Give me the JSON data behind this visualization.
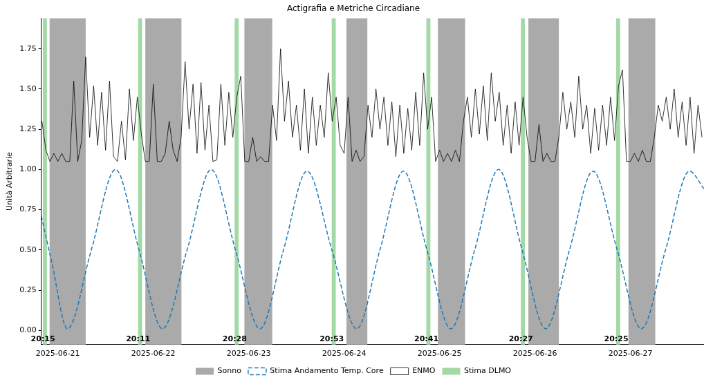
{
  "chart_data": {
    "type": "line",
    "title": "Actigrafia e Metriche Circadiane",
    "ylabel": "Unità Arbitrarie",
    "xlim": [
      "2025-06-20T19:50",
      "2025-06-27T18:30"
    ],
    "xticks": [
      "2025-06-21",
      "2025-06-22",
      "2025-06-23",
      "2025-06-24",
      "2025-06-25",
      "2025-06-26",
      "2025-06-27"
    ],
    "ylim": [
      -0.088,
      1.94
    ],
    "yticks": [
      {
        "value": 0,
        "label": "0.00"
      },
      {
        "value": 0.25,
        "label": "0.25"
      },
      {
        "value": 0.5,
        "label": "0.50"
      },
      {
        "value": 0.75,
        "label": "0.75"
      },
      {
        "value": 1,
        "label": "1.00"
      },
      {
        "value": 1.25,
        "label": "1.25"
      },
      {
        "value": 1.5,
        "label": "1.50"
      },
      {
        "value": 1.75,
        "label": "1.75"
      }
    ],
    "grid": false,
    "legend": "bottom",
    "marker": "none",
    "series": [
      {
        "name": "Stima Andamento Temp. Core",
        "color": "#1f77b4",
        "line_style": "dashed",
        "x": [
          "2025-06-20T19:50",
          "2025-06-20T22:30",
          "2025-06-21T02:25",
          "2025-06-21T08:25",
          "2025-06-21T14:30",
          "2025-06-21T20:25",
          "2025-06-22T02:20",
          "2025-06-22T08:30",
          "2025-06-22T14:35",
          "2025-06-22T20:40",
          "2025-06-23T02:50",
          "2025-06-23T08:45",
          "2025-06-23T14:40",
          "2025-06-23T20:55",
          "2025-06-24T03:10",
          "2025-06-24T09:00",
          "2025-06-24T14:55",
          "2025-06-24T20:50",
          "2025-06-25T02:50",
          "2025-06-25T08:50",
          "2025-06-25T14:50",
          "2025-06-25T20:45",
          "2025-06-26T02:40",
          "2025-06-26T08:40",
          "2025-06-26T14:35",
          "2025-06-26T20:40",
          "2025-06-27T02:45",
          "2025-06-27T08:50",
          "2025-06-27T14:50",
          "2025-06-27T18:30"
        ],
        "values": [
          0.71,
          0.42,
          0.01,
          0.5,
          1.0,
          0.5,
          0.01,
          0.5,
          1.0,
          0.5,
          0.01,
          0.5,
          0.99,
          0.5,
          0.01,
          0.5,
          0.99,
          0.5,
          0.01,
          0.5,
          1.0,
          0.5,
          0.01,
          0.5,
          0.99,
          0.5,
          0.01,
          0.5,
          0.99,
          0.88
        ]
      },
      {
        "name": "ENMO",
        "color": "#000000",
        "line_style": "solid",
        "x": [
          "2025-06-20T20:00",
          "2025-06-20T21:00",
          "2025-06-20T22:00",
          "2025-06-20T23:00",
          "2025-06-21T00:00",
          "2025-06-21T01:00",
          "2025-06-21T02:00",
          "2025-06-21T03:00",
          "2025-06-21T04:00",
          "2025-06-21T05:00",
          "2025-06-21T06:00",
          "2025-06-21T07:00",
          "2025-06-21T08:00",
          "2025-06-21T09:00",
          "2025-06-21T10:00",
          "2025-06-21T11:00",
          "2025-06-21T12:00",
          "2025-06-21T13:00",
          "2025-06-21T14:00",
          "2025-06-21T15:00",
          "2025-06-21T16:00",
          "2025-06-21T17:00",
          "2025-06-21T18:00",
          "2025-06-21T19:00",
          "2025-06-21T20:00",
          "2025-06-21T21:00",
          "2025-06-21T22:00",
          "2025-06-21T23:00",
          "2025-06-22T00:00",
          "2025-06-22T01:00",
          "2025-06-22T02:00",
          "2025-06-22T03:00",
          "2025-06-22T04:00",
          "2025-06-22T05:00",
          "2025-06-22T06:00",
          "2025-06-22T07:00",
          "2025-06-22T08:00",
          "2025-06-22T09:00",
          "2025-06-22T10:00",
          "2025-06-22T11:00",
          "2025-06-22T12:00",
          "2025-06-22T13:00",
          "2025-06-22T14:00",
          "2025-06-22T15:00",
          "2025-06-22T16:00",
          "2025-06-22T17:00",
          "2025-06-22T18:00",
          "2025-06-22T19:00",
          "2025-06-22T20:00",
          "2025-06-22T21:00",
          "2025-06-22T22:00",
          "2025-06-22T23:00",
          "2025-06-23T00:00",
          "2025-06-23T01:00",
          "2025-06-23T02:00",
          "2025-06-23T03:00",
          "2025-06-23T04:00",
          "2025-06-23T05:00",
          "2025-06-23T06:00",
          "2025-06-23T07:00",
          "2025-06-23T08:00",
          "2025-06-23T09:00",
          "2025-06-23T10:00",
          "2025-06-23T11:00",
          "2025-06-23T12:00",
          "2025-06-23T13:00",
          "2025-06-23T14:00",
          "2025-06-23T15:00",
          "2025-06-23T16:00",
          "2025-06-23T17:00",
          "2025-06-23T18:00",
          "2025-06-23T19:00",
          "2025-06-23T20:00",
          "2025-06-23T21:00",
          "2025-06-23T22:00",
          "2025-06-23T23:00",
          "2025-06-24T00:00",
          "2025-06-24T01:00",
          "2025-06-24T02:00",
          "2025-06-24T03:00",
          "2025-06-24T04:00",
          "2025-06-24T05:00",
          "2025-06-24T06:00",
          "2025-06-24T07:00",
          "2025-06-24T08:00",
          "2025-06-24T09:00",
          "2025-06-24T10:00",
          "2025-06-24T11:00",
          "2025-06-24T12:00",
          "2025-06-24T13:00",
          "2025-06-24T14:00",
          "2025-06-24T15:00",
          "2025-06-24T16:00",
          "2025-06-24T17:00",
          "2025-06-24T18:00",
          "2025-06-24T19:00",
          "2025-06-24T20:00",
          "2025-06-24T21:00",
          "2025-06-24T22:00",
          "2025-06-24T23:00",
          "2025-06-25T00:00",
          "2025-06-25T01:00",
          "2025-06-25T02:00",
          "2025-06-25T03:00",
          "2025-06-25T04:00",
          "2025-06-25T05:00",
          "2025-06-25T06:00",
          "2025-06-25T07:00",
          "2025-06-25T08:00",
          "2025-06-25T09:00",
          "2025-06-25T10:00",
          "2025-06-25T11:00",
          "2025-06-25T12:00",
          "2025-06-25T13:00",
          "2025-06-25T14:00",
          "2025-06-25T15:00",
          "2025-06-25T16:00",
          "2025-06-25T17:00",
          "2025-06-25T18:00",
          "2025-06-25T19:00",
          "2025-06-25T20:00",
          "2025-06-25T21:00",
          "2025-06-25T22:00",
          "2025-06-25T23:00",
          "2025-06-26T00:00",
          "2025-06-26T01:00",
          "2025-06-26T02:00",
          "2025-06-26T03:00",
          "2025-06-26T04:00",
          "2025-06-26T05:00",
          "2025-06-26T06:00",
          "2025-06-26T07:00",
          "2025-06-26T08:00",
          "2025-06-26T09:00",
          "2025-06-26T10:00",
          "2025-06-26T11:00",
          "2025-06-26T12:00",
          "2025-06-26T13:00",
          "2025-06-26T14:00",
          "2025-06-26T15:00",
          "2025-06-26T16:00",
          "2025-06-26T17:00",
          "2025-06-26T18:00",
          "2025-06-26T19:00",
          "2025-06-26T20:00",
          "2025-06-26T21:00",
          "2025-06-26T22:00",
          "2025-06-26T23:00",
          "2025-06-27T00:00",
          "2025-06-27T01:00",
          "2025-06-27T02:00",
          "2025-06-27T03:00",
          "2025-06-27T04:00",
          "2025-06-27T05:00",
          "2025-06-27T06:00",
          "2025-06-27T07:00",
          "2025-06-27T08:00",
          "2025-06-27T09:00",
          "2025-06-27T10:00",
          "2025-06-27T11:00",
          "2025-06-27T12:00",
          "2025-06-27T13:00",
          "2025-06-27T14:00",
          "2025-06-27T15:00",
          "2025-06-27T16:00",
          "2025-06-27T17:00",
          "2025-06-27T18:00"
        ],
        "values": [
          1.3,
          1.12,
          1.05,
          1.1,
          1.05,
          1.1,
          1.05,
          1.05,
          1.55,
          1.05,
          1.18,
          1.7,
          1.2,
          1.52,
          1.15,
          1.48,
          1.12,
          1.55,
          1.08,
          1.05,
          1.3,
          1.06,
          1.5,
          1.18,
          1.45,
          1.22,
          1.05,
          1.05,
          1.53,
          1.05,
          1.05,
          1.1,
          1.3,
          1.12,
          1.05,
          1.2,
          1.67,
          1.25,
          1.53,
          1.1,
          1.54,
          1.12,
          1.4,
          1.05,
          1.06,
          1.53,
          1.15,
          1.48,
          1.2,
          1.45,
          1.58,
          1.05,
          1.05,
          1.2,
          1.05,
          1.08,
          1.05,
          1.05,
          1.4,
          1.18,
          1.75,
          1.3,
          1.55,
          1.2,
          1.4,
          1.12,
          1.5,
          1.1,
          1.45,
          1.15,
          1.4,
          1.2,
          1.6,
          1.3,
          1.45,
          1.15,
          1.1,
          1.45,
          1.05,
          1.12,
          1.05,
          1.08,
          1.4,
          1.2,
          1.5,
          1.25,
          1.45,
          1.15,
          1.42,
          1.08,
          1.4,
          1.1,
          1.38,
          1.12,
          1.48,
          1.15,
          1.6,
          1.25,
          1.45,
          1.05,
          1.12,
          1.05,
          1.1,
          1.05,
          1.12,
          1.05,
          1.3,
          1.45,
          1.2,
          1.5,
          1.22,
          1.52,
          1.18,
          1.6,
          1.3,
          1.48,
          1.15,
          1.4,
          1.1,
          1.42,
          1.15,
          1.45,
          1.2,
          1.05,
          1.05,
          1.28,
          1.05,
          1.1,
          1.05,
          1.05,
          1.2,
          1.48,
          1.25,
          1.42,
          1.2,
          1.58,
          1.25,
          1.4,
          1.1,
          1.38,
          1.12,
          1.4,
          1.15,
          1.45,
          1.18,
          1.52,
          1.62,
          1.05,
          1.05,
          1.1,
          1.05,
          1.12,
          1.05,
          1.05,
          1.2,
          1.4,
          1.3,
          1.45,
          1.25,
          1.5,
          1.2,
          1.42,
          1.15,
          1.45,
          1.1,
          1.4,
          1.2
        ]
      }
    ],
    "bands": [
      {
        "axis": "x",
        "from": "2025-06-20T21:55",
        "to": "2025-06-21T07:00",
        "label": "Sonno",
        "color": "#aaaaaa"
      },
      {
        "axis": "x",
        "from": "2025-06-21T22:00",
        "to": "2025-06-22T07:05",
        "color": "#aaaaaa"
      },
      {
        "axis": "x",
        "from": "2025-06-22T22:55",
        "to": "2025-06-23T05:55",
        "color": "#aaaaaa"
      },
      {
        "axis": "x",
        "from": "2025-06-24T00:35",
        "to": "2025-06-24T05:50",
        "color": "#aaaaaa"
      },
      {
        "axis": "x",
        "from": "2025-06-24T23:35",
        "to": "2025-06-25T06:25",
        "color": "#aaaaaa"
      },
      {
        "axis": "x",
        "from": "2025-06-25T22:20",
        "to": "2025-06-26T06:00",
        "color": "#aaaaaa"
      },
      {
        "axis": "x",
        "from": "2025-06-26T23:30",
        "to": "2025-06-27T06:15",
        "color": "#aaaaaa"
      },
      {
        "axis": "x",
        "from": "2025-06-20T20:15",
        "to": "2025-06-20T21:15",
        "label": "Stima DLMO",
        "color": "#a3d9a5"
      },
      {
        "axis": "x",
        "from": "2025-06-21T20:11",
        "to": "2025-06-21T21:11",
        "color": "#a3d9a5"
      },
      {
        "axis": "x",
        "from": "2025-06-22T20:28",
        "to": "2025-06-22T21:28",
        "color": "#a3d9a5"
      },
      {
        "axis": "x",
        "from": "2025-06-23T20:53",
        "to": "2025-06-23T21:53",
        "color": "#a3d9a5"
      },
      {
        "axis": "x",
        "from": "2025-06-24T20:41",
        "to": "2025-06-24T21:41",
        "color": "#a3d9a5"
      },
      {
        "axis": "x",
        "from": "2025-06-25T20:27",
        "to": "2025-06-25T21:27",
        "color": "#a3d9a5"
      },
      {
        "axis": "x",
        "from": "2025-06-26T20:25",
        "to": "2025-06-26T21:25",
        "color": "#a3d9a5"
      }
    ],
    "annotations": [
      {
        "text": "20:15",
        "x": "2025-06-20T20:15",
        "y": -0.055
      },
      {
        "text": "20:11",
        "x": "2025-06-21T20:11",
        "y": -0.055
      },
      {
        "text": "20:28",
        "x": "2025-06-22T20:28",
        "y": -0.055
      },
      {
        "text": "20:53",
        "x": "2025-06-23T20:53",
        "y": -0.055
      },
      {
        "text": "20:41",
        "x": "2025-06-24T20:41",
        "y": -0.055
      },
      {
        "text": "20:27",
        "x": "2025-06-25T20:27",
        "y": -0.055
      },
      {
        "text": "20:25",
        "x": "2025-06-26T20:25",
        "y": -0.055
      }
    ]
  }
}
